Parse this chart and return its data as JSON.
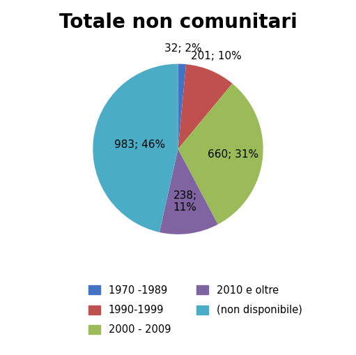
{
  "title": "Totale non comunitari",
  "slices": [
    32,
    201,
    660,
    238,
    983
  ],
  "legend_labels": [
    "1970 -1989",
    "1990-1999",
    "2000 - 2009",
    "2010 e oltre",
    "(non disponibile)"
  ],
  "colors": [
    "#4472C4",
    "#C0504D",
    "#9BBB59",
    "#8064A2",
    "#4BACC6"
  ],
  "startangle": 90,
  "background_color": "#ffffff",
  "title_fontsize": 20,
  "label_fontsize": 11,
  "inner_labels": [
    "",
    "660; 31%",
    "238;\n11%",
    "983; 46%"
  ],
  "outer_labels": [
    "32; 2%",
    "201; 10%"
  ]
}
